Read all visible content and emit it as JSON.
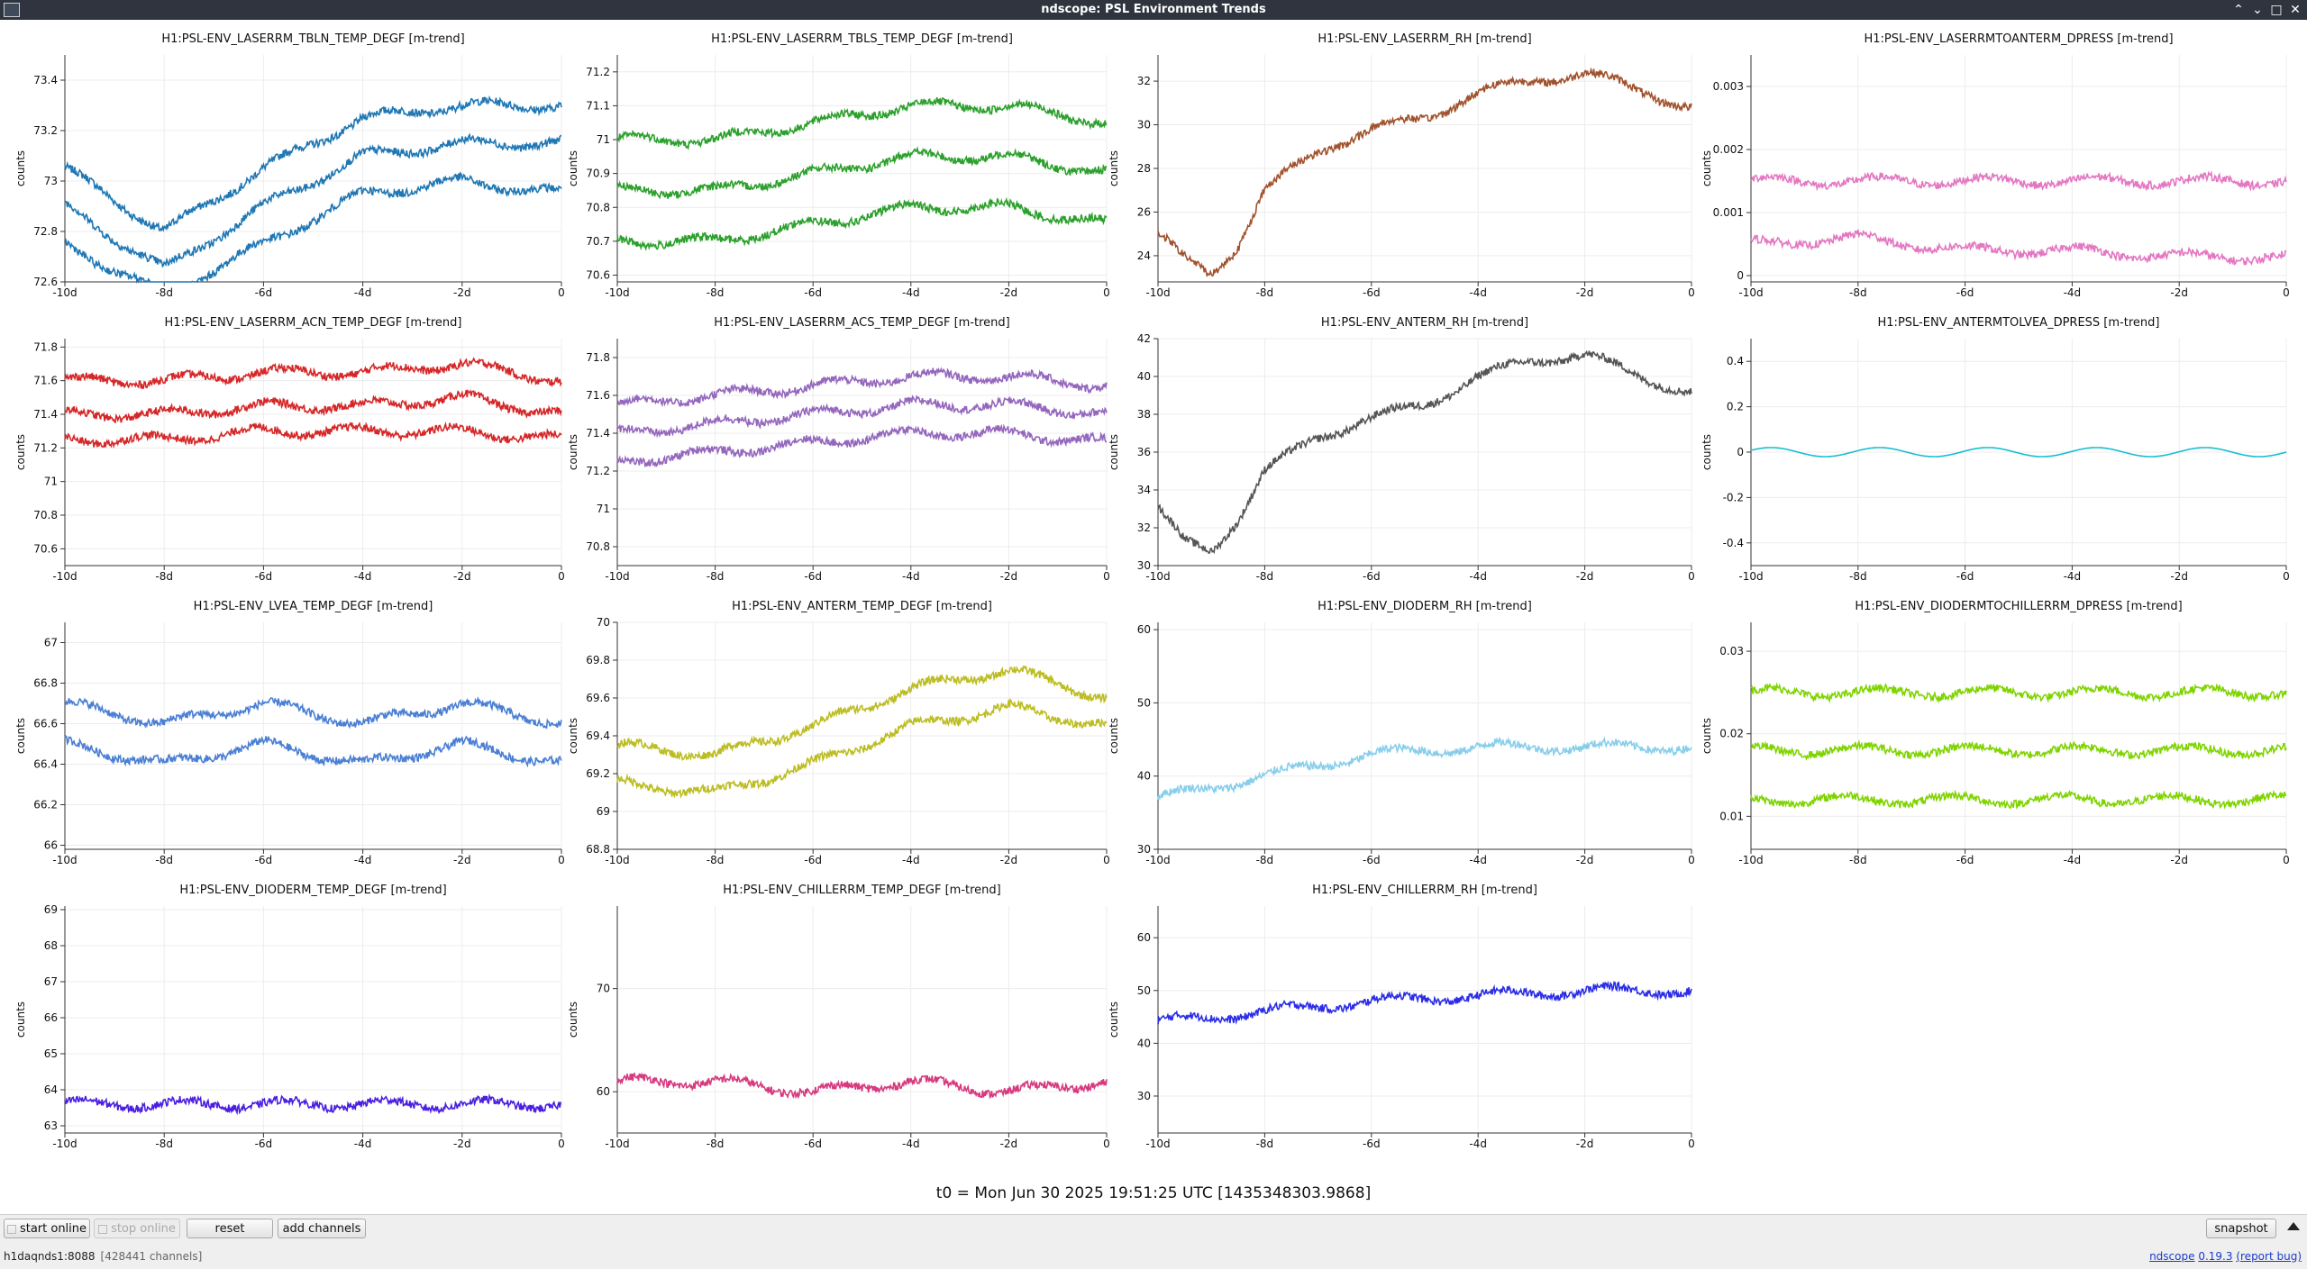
{
  "window": {
    "title": "ndscope: PSL Environment Trends",
    "controls": [
      "⌃",
      "⌄",
      "□",
      "✕"
    ]
  },
  "axis": {
    "ylabel": "counts",
    "xticks": [
      "-10d",
      "-8d",
      "-6d",
      "-4d",
      "-2d",
      "0"
    ]
  },
  "plots": [
    {
      "title": "H1:PSL-ENV_LASERRM_TBLN_TEMP_DEGF [m-trend]",
      "color": "#1f77b4",
      "ylim": [
        72.6,
        73.5
      ],
      "yticks": [
        "72.6",
        "72.8",
        "73",
        "73.2",
        "73.4"
      ],
      "chart_data": {
        "type": "line",
        "x": [
          -10,
          -8,
          -6,
          -4,
          -2,
          0
        ],
        "series": [
          {
            "values": [
              73.05,
              72.8,
              73.05,
              73.25,
              73.3,
              73.3
            ]
          },
          {
            "values": [
              72.9,
              72.65,
              72.9,
              73.1,
              73.15,
              73.15
            ]
          },
          {
            "values": [
              72.75,
              72.55,
              72.75,
              72.95,
              73.0,
              72.95
            ]
          }
        ]
      }
    },
    {
      "title": "H1:PSL-ENV_LASERRM_TBLS_TEMP_DEGF [m-trend]",
      "color": "#2ca02c",
      "ylim": [
        70.58,
        71.25
      ],
      "yticks": [
        "70.6",
        "70.7",
        "70.8",
        "70.9",
        "71",
        "71.1",
        "71.2"
      ],
      "chart_data": {
        "type": "line",
        "x": [
          -10,
          -8,
          -6,
          -4,
          -2,
          0
        ],
        "series": [
          {
            "values": [
              71.0,
              71.0,
              71.05,
              71.1,
              71.1,
              71.05
            ]
          },
          {
            "values": [
              70.85,
              70.85,
              70.9,
              70.95,
              70.95,
              70.9
            ]
          },
          {
            "values": [
              70.7,
              70.7,
              70.75,
              70.8,
              70.8,
              70.75
            ]
          }
        ]
      }
    },
    {
      "title": "H1:PSL-ENV_LASERRM_RH [m-trend]",
      "color": "#a0522d",
      "ylim": [
        22.8,
        33.2
      ],
      "yticks": [
        "24",
        "26",
        "28",
        "30",
        "32"
      ],
      "chart_data": {
        "type": "line",
        "x": [
          -10,
          -9.5,
          -9,
          -8.5,
          -8,
          -7,
          -6,
          -5,
          -4,
          -3,
          -2,
          -1,
          0
        ],
        "series": [
          {
            "values": [
              25,
              23.8,
              23.2,
              24.5,
              27,
              28.8,
              29.8,
              30.3,
              31.5,
              32,
              32.4,
              31.6,
              30.8
            ]
          }
        ]
      }
    },
    {
      "title": "H1:PSL-ENV_LASERRMTOANTERM_DPRESS [m-trend]",
      "color": "#e377c2",
      "ylim": [
        -0.0001,
        0.0035
      ],
      "yticks": [
        "0",
        "0.001",
        "0.002",
        "0.003"
      ],
      "chart_data": {
        "type": "line",
        "x": [
          -10,
          -8,
          -6,
          -4,
          -2,
          0
        ],
        "series": [
          {
            "values": [
              0.0015,
              0.0015,
              0.0015,
              0.0015,
              0.0015,
              0.0015
            ]
          },
          {
            "values": [
              0.0005,
              0.0006,
              0.0004,
              0.0004,
              0.0003,
              0.0003
            ]
          }
        ]
      }
    },
    {
      "title": "H1:PSL-ENV_LASERRM_ACN_TEMP_DEGF [m-trend]",
      "color": "#d62728",
      "ylim": [
        70.5,
        71.85
      ],
      "yticks": [
        "70.6",
        "70.8",
        "71",
        "71.2",
        "71.4",
        "71.6",
        "71.8"
      ],
      "chart_data": {
        "type": "line",
        "x": [
          -10,
          -8,
          -6,
          -4,
          -2,
          0
        ],
        "series": [
          {
            "values": [
              71.6,
              71.6,
              71.65,
              71.65,
              71.7,
              71.6
            ]
          },
          {
            "values": [
              71.4,
              71.4,
              71.45,
              71.45,
              71.5,
              71.4
            ]
          },
          {
            "values": [
              71.25,
              71.25,
              71.3,
              71.3,
              71.3,
              71.25
            ]
          }
        ]
      }
    },
    {
      "title": "H1:PSL-ENV_LASERRM_ACS_TEMP_DEGF [m-trend]",
      "color": "#9467bd",
      "ylim": [
        70.7,
        71.9
      ],
      "yticks": [
        "70.8",
        "71",
        "71.2",
        "71.4",
        "71.6",
        "71.8"
      ],
      "chart_data": {
        "type": "line",
        "x": [
          -10,
          -8,
          -6,
          -4,
          -2,
          0
        ],
        "series": [
          {
            "values": [
              71.55,
              71.6,
              71.65,
              71.7,
              71.7,
              71.65
            ]
          },
          {
            "values": [
              71.4,
              71.45,
              71.5,
              71.55,
              71.55,
              71.5
            ]
          },
          {
            "values": [
              71.25,
              71.3,
              71.35,
              71.4,
              71.4,
              71.35
            ]
          }
        ]
      }
    },
    {
      "title": "H1:PSL-ENV_ANTERM_RH [m-trend]",
      "color": "#555555",
      "ylim": [
        30,
        42
      ],
      "yticks": [
        "30",
        "32",
        "34",
        "36",
        "38",
        "40",
        "42"
      ],
      "chart_data": {
        "type": "line",
        "x": [
          -10,
          -9.5,
          -9,
          -8.5,
          -8,
          -7,
          -6,
          -5,
          -4,
          -3,
          -2,
          -1,
          0
        ],
        "series": [
          {
            "values": [
              33,
              31.2,
              30.8,
              32.5,
              35,
              36.8,
              37.8,
              38.5,
              40,
              40.8,
              41.2,
              40,
              39.2
            ]
          }
        ]
      }
    },
    {
      "title": "H1:PSL-ENV_ANTERMTOLVEA_DPRESS [m-trend]",
      "color": "#17becf",
      "ylim": [
        -0.5,
        0.5
      ],
      "yticks": [
        "-0.4",
        "-0.2",
        "0",
        "0.2",
        "0.4"
      ],
      "chart_data": {
        "type": "line",
        "x": [
          -10,
          0
        ],
        "series": [
          {
            "values": [
              0,
              0
            ]
          }
        ]
      }
    },
    {
      "title": "H1:PSL-ENV_LVEA_TEMP_DEGF [m-trend]",
      "color": "#4a7fd4",
      "ylim": [
        65.98,
        67.1
      ],
      "yticks": [
        "66",
        "66.2",
        "66.4",
        "66.6",
        "66.8",
        "67"
      ],
      "chart_data": {
        "type": "line",
        "x": [
          -10,
          -8,
          -6,
          -4,
          -2,
          0
        ],
        "series": [
          {
            "values": [
              66.7,
              66.6,
              66.7,
              66.6,
              66.7,
              66.6
            ]
          },
          {
            "values": [
              66.5,
              66.4,
              66.5,
              66.4,
              66.5,
              66.4
            ]
          }
        ]
      }
    },
    {
      "title": "H1:PSL-ENV_ANTERM_TEMP_DEGF [m-trend]",
      "color": "#bcbd22",
      "ylim": [
        68.8,
        70
      ],
      "yticks": [
        "68.8",
        "69",
        "69.2",
        "69.4",
        "69.6",
        "69.8",
        "70"
      ],
      "chart_data": {
        "type": "line",
        "x": [
          -10,
          -8,
          -6,
          -4,
          -2,
          0
        ],
        "series": [
          {
            "values": [
              69.35,
              69.3,
              69.45,
              69.65,
              69.75,
              69.6
            ]
          },
          {
            "values": [
              69.15,
              69.1,
              69.25,
              69.45,
              69.55,
              69.45
            ]
          }
        ]
      }
    },
    {
      "title": "H1:PSL-ENV_DIODERM_RH [m-trend]",
      "color": "#87ceeb",
      "ylim": [
        30,
        61
      ],
      "yticks": [
        "30",
        "40",
        "50",
        "60"
      ],
      "chart_data": {
        "type": "line",
        "x": [
          -10,
          -8,
          -6,
          -4,
          -2,
          0
        ],
        "series": [
          {
            "values": [
              37,
              40,
              43,
              44,
              44,
              44
            ]
          }
        ]
      }
    },
    {
      "title": "H1:PSL-ENV_DIODERMTOCHILLERRM_DPRESS [m-trend]",
      "color": "#7fd400",
      "ylim": [
        0.006,
        0.0335
      ],
      "yticks": [
        "0.01",
        "0.02",
        "0.03"
      ],
      "chart_data": {
        "type": "line",
        "x": [
          -10,
          -8,
          -6,
          -4,
          -2,
          0
        ],
        "series": [
          {
            "values": [
              0.025,
              0.025,
              0.025,
              0.025,
              0.025,
              0.025
            ]
          },
          {
            "values": [
              0.018,
              0.018,
              0.018,
              0.018,
              0.018,
              0.018
            ]
          },
          {
            "values": [
              0.012,
              0.012,
              0.012,
              0.012,
              0.012,
              0.012
            ]
          }
        ]
      }
    },
    {
      "title": "H1:PSL-ENV_DIODERM_TEMP_DEGF [m-trend]",
      "color": "#4b1fe0",
      "ylim": [
        62.8,
        69.1
      ],
      "yticks": [
        "63",
        "64",
        "65",
        "66",
        "67",
        "68",
        "69"
      ],
      "chart_data": {
        "type": "line",
        "x": [
          -10,
          -8,
          -6,
          -4,
          -2,
          0
        ],
        "series": [
          {
            "values": [
              63.6,
              63.6,
              63.6,
              63.6,
              63.6,
              63.6
            ]
          }
        ]
      }
    },
    {
      "title": "H1:PSL-ENV_CHILLERRM_TEMP_DEGF [m-trend]",
      "color": "#d63a7f",
      "ylim": [
        56,
        78
      ],
      "yticks": [
        "60",
        "70"
      ],
      "chart_data": {
        "type": "line",
        "x": [
          -10,
          -8,
          -6,
          -4,
          -2,
          0
        ],
        "series": [
          {
            "values": [
              61,
              61,
              60,
              61,
              60,
              61
            ]
          }
        ]
      }
    },
    {
      "title": "H1:PSL-ENV_CHILLERRM_RH [m-trend]",
      "color": "#2b2de6",
      "ylim": [
        23,
        66
      ],
      "yticks": [
        "30",
        "40",
        "50",
        "60"
      ],
      "chart_data": {
        "type": "line",
        "x": [
          -10,
          -8,
          -6,
          -4,
          -2,
          0
        ],
        "series": [
          {
            "values": [
              44,
              46,
              48,
              49,
              50,
              50
            ]
          }
        ]
      }
    }
  ],
  "t0_label": "t0 = Mon Jun 30 2025 19:51:25 UTC [1435348303.9868]",
  "toolbar": {
    "start_online": "start online",
    "stop_online": "stop online",
    "reset": "reset",
    "add_channels": "add channels",
    "snapshot": "snapshot"
  },
  "status": {
    "server": "h1daqnds1:8088",
    "channels": "[428441 channels]",
    "app_name": "ndscope",
    "version": "0.19.3",
    "report_bug": "(report bug)"
  }
}
